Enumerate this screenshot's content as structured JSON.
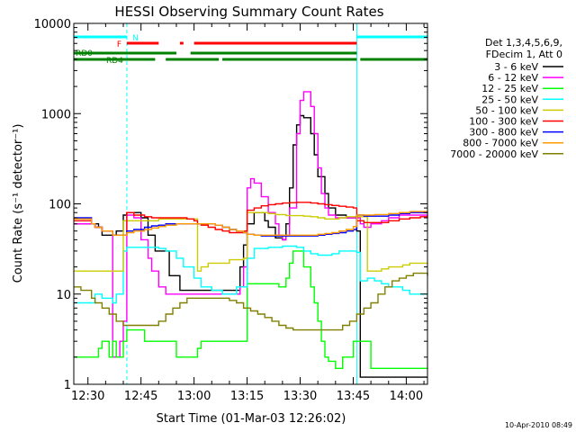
{
  "chart_data": {
    "type": "line",
    "title": "HESSI Observing Summary Count Rates",
    "xlabel": "Start Time (01-Mar-03 12:26:02)",
    "ylabel": "Count Rate (s⁻¹ detector⁻¹)",
    "yscale": "log",
    "xlim_min": [
      26,
      126
    ],
    "ylim": [
      1,
      10000
    ],
    "x_ticks": [
      {
        "min": 30,
        "label": "12:30"
      },
      {
        "min": 45,
        "label": "12:45"
      },
      {
        "min": 60,
        "label": "13:00"
      },
      {
        "min": 75,
        "label": "13:15"
      },
      {
        "min": 90,
        "label": "13:30"
      },
      {
        "min": 105,
        "label": "13:45"
      },
      {
        "min": 120,
        "label": "14:00"
      }
    ],
    "y_ticks": [
      {
        "v": 1,
        "label": "1"
      },
      {
        "v": 10,
        "label": "10"
      },
      {
        "v": 100,
        "label": "100"
      },
      {
        "v": 1000,
        "label": "1000"
      },
      {
        "v": 10000,
        "label": "10000"
      }
    ],
    "legend_header": [
      "Det 1,3,4,5,6,9,",
      "FDecim 1, Att 0"
    ],
    "series": [
      {
        "name": "3 - 6 keV",
        "color": "#000000",
        "x": [
          26,
          31,
          33,
          34,
          37,
          38,
          40,
          41,
          43,
          45,
          47,
          49,
          53,
          56,
          58,
          59,
          60,
          63,
          67,
          68,
          70,
          71,
          73,
          74,
          75,
          77,
          78,
          80,
          81,
          83,
          85,
          86,
          87,
          88,
          89,
          90,
          91,
          93,
          94,
          95,
          97,
          98,
          100,
          103,
          105,
          106,
          107,
          108,
          110,
          113,
          116,
          118,
          121,
          126
        ],
        "y": [
          60,
          60,
          55,
          45,
          45,
          50,
          75,
          80,
          80,
          70,
          45,
          30,
          16,
          11,
          11,
          11,
          11,
          11,
          11,
          11,
          11,
          11,
          20,
          35,
          60,
          80,
          80,
          65,
          55,
          42,
          40,
          60,
          150,
          450,
          750,
          950,
          900,
          600,
          350,
          200,
          130,
          90,
          75,
          70,
          70,
          50,
          1.2,
          1.2,
          1.2,
          1.2,
          1.2,
          1.2,
          1.2,
          1.2
        ]
      },
      {
        "name": "6 - 12 keV",
        "color": "#ff00ff",
        "x": [
          26,
          31,
          32,
          33,
          34,
          36,
          37,
          38,
          39,
          40,
          41,
          43,
          45,
          47,
          48,
          50,
          52,
          53,
          55,
          56,
          58,
          60,
          61,
          62,
          64,
          66,
          68,
          70,
          71,
          72,
          73,
          74,
          75,
          76,
          77,
          79,
          81,
          83,
          84,
          85,
          86,
          87,
          89,
          90,
          91,
          93,
          94,
          95,
          96,
          97,
          98,
          100,
          102,
          104,
          105,
          106,
          107,
          108,
          110,
          113,
          115,
          118,
          121,
          126
        ],
        "y": [
          60,
          60,
          55,
          55,
          50,
          50,
          2,
          2,
          3,
          5,
          75,
          70,
          40,
          25,
          18,
          12,
          10,
          10,
          10,
          10,
          10,
          10,
          10,
          10,
          10,
          10,
          10,
          10,
          10,
          10,
          12,
          20,
          150,
          190,
          170,
          120,
          80,
          60,
          45,
          40,
          45,
          90,
          600,
          1400,
          1750,
          1200,
          600,
          250,
          130,
          90,
          75,
          70,
          70,
          70,
          70,
          70,
          60,
          55,
          60,
          65,
          70,
          75,
          75,
          70
        ]
      },
      {
        "name": "12 - 25 keV",
        "color": "#00ff00",
        "x": [
          26,
          31,
          32,
          33,
          34,
          36,
          37,
          38,
          39,
          40,
          41,
          43,
          46,
          48,
          50,
          52,
          55,
          58,
          60,
          61,
          62,
          64,
          66,
          68,
          70,
          71,
          72,
          74,
          75,
          77,
          80,
          81,
          82,
          83,
          84,
          86,
          87,
          88,
          89,
          90,
          91,
          93,
          94,
          95,
          96,
          97,
          98,
          100,
          102,
          104,
          105,
          106,
          107,
          108,
          110,
          113,
          116,
          118,
          121,
          126
        ],
        "y": [
          2,
          2,
          2,
          2.5,
          3,
          2,
          3,
          2,
          2,
          3,
          4,
          4,
          3,
          3,
          3,
          3,
          2,
          2,
          2,
          2.5,
          3,
          3,
          3,
          3,
          3,
          3,
          3,
          3,
          13,
          13,
          13,
          13,
          13,
          13,
          12,
          15,
          22,
          30,
          30,
          30,
          20,
          12,
          8,
          5,
          3,
          2,
          1.8,
          1.5,
          2,
          2,
          3,
          3,
          3,
          3,
          1.5,
          1.5,
          1.5,
          1.5,
          1.5,
          1.5
        ]
      },
      {
        "name": "25 - 50 keV",
        "color": "#00ffff",
        "x": [
          26,
          31,
          32,
          34,
          37,
          38,
          40,
          41,
          43,
          46,
          48,
          50,
          52,
          55,
          57,
          60,
          62,
          63,
          65,
          67,
          68,
          70,
          72,
          74,
          75,
          77,
          79,
          81,
          83,
          85,
          87,
          89,
          91,
          93,
          95,
          97,
          99,
          101,
          103,
          105,
          106,
          107,
          109,
          111,
          113,
          115,
          117,
          119,
          121,
          126
        ],
        "y": [
          8,
          8,
          10,
          9,
          8,
          10,
          30,
          33,
          33,
          33,
          33,
          32,
          30,
          25,
          20,
          15,
          12,
          12,
          11,
          11,
          10,
          10,
          12,
          12,
          25,
          32,
          32,
          33,
          33,
          34,
          34,
          33,
          30,
          28,
          27,
          27,
          28,
          30,
          30,
          30,
          29,
          14,
          15,
          14,
          13,
          12,
          12,
          11,
          10,
          10
        ]
      },
      {
        "name": "50 - 100 keV",
        "color": "#cccc00",
        "x": [
          26,
          31,
          32,
          34,
          37,
          38,
          40,
          41,
          43,
          46,
          48,
          50,
          52,
          55,
          58,
          60,
          61,
          62,
          64,
          66,
          68,
          70,
          72,
          74,
          75,
          77,
          79,
          81,
          83,
          86,
          89,
          91,
          93,
          95,
          97,
          99,
          101,
          103,
          105,
          106,
          107,
          109,
          111,
          113,
          115,
          117,
          119,
          121,
          126
        ],
        "y": [
          18,
          18,
          18,
          18,
          18,
          18,
          65,
          65,
          65,
          65,
          65,
          68,
          68,
          68,
          68,
          68,
          18,
          20,
          22,
          22,
          22,
          24,
          24,
          25,
          80,
          80,
          80,
          78,
          76,
          74,
          74,
          73,
          72,
          70,
          68,
          68,
          70,
          72,
          72,
          72,
          72,
          18,
          18,
          19,
          20,
          20,
          21,
          22,
          22
        ]
      },
      {
        "name": "100 - 300 keV",
        "color": "#ff0000",
        "x": [
          26,
          31,
          32,
          34,
          37,
          38,
          40,
          41,
          43,
          46,
          48,
          50,
          52,
          55,
          58,
          60,
          61,
          62,
          64,
          66,
          68,
          70,
          72,
          74,
          75,
          77,
          79,
          81,
          83,
          85,
          87,
          89,
          91,
          93,
          95,
          97,
          99,
          101,
          103,
          105,
          106,
          108,
          111,
          115,
          118,
          121,
          124,
          126
        ],
        "y": [
          65,
          60,
          55,
          50,
          45,
          45,
          45,
          80,
          75,
          72,
          70,
          70,
          70,
          70,
          68,
          65,
          60,
          58,
          55,
          52,
          50,
          48,
          48,
          50,
          85,
          90,
          95,
          98,
          100,
          102,
          103,
          104,
          104,
          102,
          100,
          98,
          96,
          94,
          92,
          90,
          65,
          62,
          62,
          65,
          68,
          70,
          72,
          72
        ]
      },
      {
        "name": "300 - 800 keV",
        "color": "#0000ff",
        "x": [
          26,
          31,
          32,
          34,
          37,
          38,
          40,
          41,
          43,
          46,
          48,
          50,
          52,
          55,
          58,
          60,
          61,
          62,
          64,
          66,
          68,
          70,
          72,
          74,
          75,
          77,
          79,
          81,
          83,
          85,
          87,
          89,
          91,
          93,
          95,
          97,
          99,
          101,
          103,
          105,
          106,
          108,
          111,
          115,
          118,
          121,
          124,
          126
        ],
        "y": [
          70,
          60,
          55,
          50,
          45,
          45,
          45,
          50,
          52,
          55,
          57,
          58,
          60,
          60,
          60,
          60,
          60,
          60,
          60,
          58,
          55,
          52,
          50,
          48,
          46,
          45,
          44,
          44,
          44,
          44,
          44,
          44,
          44,
          44,
          45,
          46,
          47,
          48,
          50,
          52,
          75,
          73,
          73,
          75,
          78,
          80,
          80,
          78
        ]
      },
      {
        "name": "800 - 7000 keV",
        "color": "#ff9900",
        "x": [
          26,
          31,
          32,
          34,
          37,
          38,
          40,
          41,
          43,
          46,
          48,
          50,
          52,
          55,
          58,
          60,
          61,
          62,
          64,
          66,
          68,
          70,
          72,
          74,
          75,
          77,
          79,
          81,
          83,
          85,
          87,
          89,
          91,
          93,
          95,
          97,
          99,
          101,
          103,
          105,
          106,
          108,
          111,
          115,
          118,
          121,
          124,
          126
        ],
        "y": [
          68,
          60,
          55,
          50,
          45,
          45,
          45,
          48,
          50,
          52,
          54,
          56,
          58,
          60,
          60,
          60,
          60,
          60,
          60,
          58,
          55,
          52,
          50,
          48,
          46,
          45,
          45,
          45,
          45,
          45,
          45,
          45,
          45,
          45,
          46,
          47,
          48,
          50,
          52,
          56,
          75,
          75,
          76,
          78,
          80,
          82,
          82,
          80
        ]
      },
      {
        "name": "7000 - 20000 keV",
        "color": "#808000",
        "x": [
          26,
          28,
          31,
          32,
          34,
          36,
          38,
          40,
          42,
          44,
          46,
          48,
          50,
          52,
          54,
          56,
          58,
          60,
          62,
          64,
          66,
          68,
          70,
          72,
          74,
          76,
          78,
          80,
          82,
          84,
          86,
          88,
          90,
          92,
          94,
          96,
          98,
          100,
          102,
          104,
          106,
          108,
          110,
          112,
          114,
          116,
          118,
          120,
          122,
          124,
          126
        ],
        "y": [
          12,
          11,
          9,
          8,
          7,
          6,
          5,
          4.5,
          4.5,
          4.5,
          4.5,
          4.5,
          5,
          6,
          7,
          8,
          9,
          9,
          9,
          9,
          9,
          9,
          8.5,
          8,
          7,
          6.5,
          6,
          5.5,
          5,
          4.5,
          4.2,
          4,
          4,
          4,
          4,
          4,
          4,
          4,
          4.5,
          5,
          6,
          7,
          8,
          10,
          12,
          14,
          15,
          16,
          17,
          17,
          16
        ]
      }
    ],
    "flags": [
      {
        "label": "N",
        "color": "#00ffff",
        "segments": [
          [
            26,
            41
          ],
          [
            106,
            126
          ]
        ]
      },
      {
        "label": "F",
        "color": "#ff0000",
        "segments": [
          [
            41,
            50
          ],
          [
            56,
            57
          ],
          [
            60,
            106
          ]
        ]
      },
      {
        "label": "RD0",
        "color": "#008000",
        "segments": [
          [
            26,
            55
          ],
          [
            59,
            106
          ]
        ]
      },
      {
        "label": "RD4",
        "color": "#008000",
        "segments": [
          [
            26,
            41
          ],
          [
            41,
            49
          ],
          [
            52,
            67
          ],
          [
            68,
            106
          ],
          [
            107,
            126
          ]
        ]
      }
    ],
    "shading_intervals": [
      [
        26,
        41
      ],
      [
        106,
        126
      ]
    ],
    "grid": false,
    "legend_position": "right"
  },
  "footer": {
    "timestamp": "10-Apr-2010 08:49"
  }
}
